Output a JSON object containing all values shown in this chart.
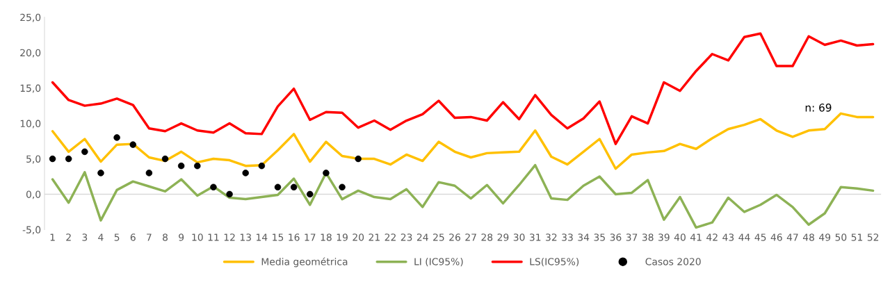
{
  "chart_data": {
    "type": "line",
    "categories": [
      "1",
      "2",
      "3",
      "4",
      "5",
      "6",
      "7",
      "8",
      "9",
      "10",
      "11",
      "12",
      "13",
      "14",
      "15",
      "16",
      "17",
      "18",
      "19",
      "20",
      "21",
      "22",
      "23",
      "24",
      "25",
      "26",
      "27",
      "28",
      "29",
      "30",
      "31",
      "32",
      "33",
      "34",
      "35",
      "36",
      "37",
      "38",
      "39",
      "40",
      "41",
      "42",
      "43",
      "44",
      "45",
      "46",
      "47",
      "48",
      "49",
      "50",
      "51",
      "52"
    ],
    "series": [
      {
        "name": "Media geométrica",
        "color": "#ffc000",
        "values": [
          8.9,
          6.0,
          7.8,
          4.6,
          7.0,
          7.1,
          5.2,
          4.7,
          6.0,
          4.5,
          5.0,
          4.8,
          4.0,
          4.1,
          6.2,
          8.5,
          4.6,
          7.4,
          5.4,
          5.0,
          5.0,
          4.2,
          5.6,
          4.7,
          7.4,
          6.0,
          5.2,
          5.8,
          5.9,
          6.0,
          9.0,
          5.3,
          4.2,
          6.0,
          7.8,
          3.6,
          5.6,
          5.9,
          6.1,
          7.1,
          6.4,
          7.9,
          9.2,
          9.8,
          10.6,
          9.0,
          8.1,
          9.0,
          9.2,
          11.4,
          10.9,
          10.9
        ]
      },
      {
        "name": "LI (IC95%)",
        "color": "#8db255",
        "values": [
          2.1,
          -1.2,
          3.1,
          -3.7,
          0.6,
          1.8,
          1.1,
          0.4,
          2.1,
          -0.2,
          1.1,
          -0.5,
          -0.7,
          -0.4,
          -0.1,
          2.2,
          -1.5,
          3.0,
          -0.7,
          0.5,
          -0.4,
          -0.7,
          0.7,
          -1.8,
          1.7,
          1.2,
          -0.6,
          1.3,
          -1.3,
          1.3,
          4.1,
          -0.6,
          -0.8,
          1.2,
          2.5,
          0.0,
          0.2,
          2.0,
          -3.6,
          -0.4,
          -4.7,
          -4.0,
          -0.5,
          -2.5,
          -1.5,
          -0.1,
          -1.8,
          -4.3,
          -2.7,
          1.0,
          0.8,
          0.5
        ]
      },
      {
        "name": "LS(IC95%)",
        "color": "#ff0000",
        "values": [
          15.8,
          13.3,
          12.5,
          12.8,
          13.5,
          12.6,
          9.3,
          8.9,
          10.0,
          9.0,
          8.7,
          10.0,
          8.6,
          8.5,
          12.4,
          14.9,
          10.5,
          11.6,
          11.5,
          9.4,
          10.4,
          9.1,
          10.4,
          11.3,
          13.2,
          10.8,
          10.9,
          10.4,
          13.0,
          10.6,
          14.0,
          11.2,
          9.3,
          10.7,
          13.1,
          7.1,
          11.0,
          10.0,
          15.8,
          14.6,
          17.4,
          19.8,
          18.9,
          22.2,
          22.7,
          18.1,
          18.1,
          22.3,
          21.1,
          21.7,
          21.0,
          21.2
        ]
      },
      {
        "name": "Casos 2020",
        "type": "scatter",
        "marker": "circle",
        "color": "#000000",
        "x": [
          "1",
          "2",
          "3",
          "4",
          "5",
          "6",
          "7",
          "8",
          "9",
          "10",
          "11",
          "12",
          "13",
          "14",
          "15",
          "16",
          "17",
          "18",
          "19",
          "20"
        ],
        "values": [
          5,
          5,
          6,
          3,
          8,
          7,
          3,
          5,
          4,
          4,
          1,
          0,
          3,
          4,
          1,
          1,
          0,
          3,
          1,
          5
        ]
      }
    ],
    "ylim": [
      -5,
      25
    ],
    "yticks": [
      {
        "value": -5,
        "label": "-5,0"
      },
      {
        "value": 0,
        "label": "0,0"
      },
      {
        "value": 5,
        "label": "5,0"
      },
      {
        "value": 10,
        "label": "10,0"
      },
      {
        "value": 15,
        "label": "15,0"
      },
      {
        "value": 20,
        "label": "20,0"
      },
      {
        "value": 25,
        "label": "25,0"
      }
    ],
    "annotations": [
      "n: 69"
    ],
    "grid": false,
    "ref_lines": [
      {
        "axis": "y",
        "value": 0,
        "color": "#d9d9d9"
      }
    ],
    "marker": "none",
    "legend": "bottom"
  }
}
